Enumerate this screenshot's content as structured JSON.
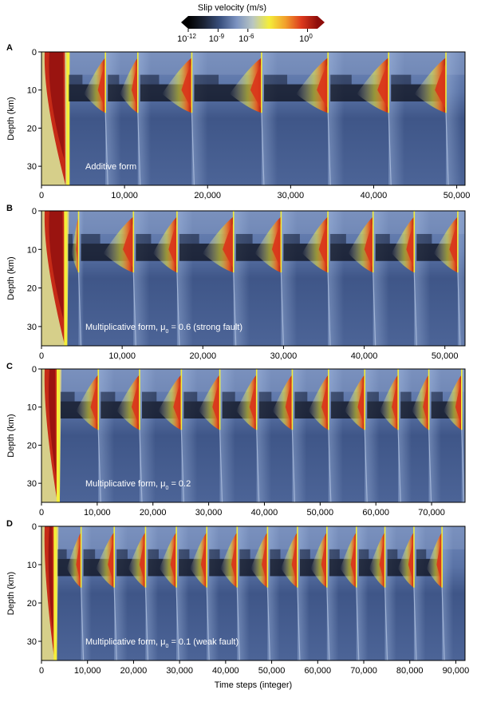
{
  "colorbar": {
    "title": "Slip velocity (m/s)",
    "scale": "log",
    "ticks": [
      {
        "base": "10",
        "exp": "-12"
      },
      {
        "base": "10",
        "exp": "-9"
      },
      {
        "base": "10",
        "exp": "-6"
      },
      {
        "base": "10",
        "exp": "0"
      }
    ],
    "colors": [
      "#000000",
      "#1c2436",
      "#3b5280",
      "#7c93c1",
      "#b9c6c2",
      "#f4ee3a",
      "#f2a12c",
      "#dd3a1d",
      "#8e0d0a"
    ]
  },
  "chart_data": [
    {
      "type": "heatmap",
      "panel": "A",
      "title": "",
      "annotation": {
        "text": "Additive form",
        "sub": "",
        "tail": ""
      },
      "xlabel": "",
      "ylabel": "Depth (km)",
      "xlim": [
        0,
        51000
      ],
      "ylim": [
        35,
        0
      ],
      "xticks": [
        0,
        10000,
        20000,
        30000,
        40000,
        50000
      ],
      "xtick_labels": [
        "0",
        "10,000",
        "20,000",
        "30,000",
        "40,000",
        "50,000"
      ],
      "yticks": [
        0,
        10,
        20,
        30
      ],
      "ytick_labels": [
        "0",
        "10",
        "20",
        "30"
      ],
      "events": [
        3000,
        7700,
        11600,
        18100,
        26500,
        34500,
        41800,
        48700
      ],
      "bright_column": 3200
    },
    {
      "type": "heatmap",
      "panel": "B",
      "title": "",
      "annotation": {
        "text": "Multiplicative form, μ",
        "sub": "0",
        "tail": " = 0.6 (strong fault)"
      },
      "xlabel": "",
      "ylabel": "Depth (km)",
      "xlim": [
        0,
        52500
      ],
      "ylim": [
        35,
        0
      ],
      "xticks": [
        0,
        10000,
        20000,
        30000,
        40000,
        50000
      ],
      "xtick_labels": [
        "0",
        "10,000",
        "20,000",
        "30,000",
        "40,000",
        "50,000"
      ],
      "yticks": [
        0,
        10,
        20,
        30
      ],
      "ytick_labels": [
        "0",
        "10",
        "20",
        "30"
      ],
      "events": [
        3000,
        4600,
        11400,
        16800,
        23800,
        29700,
        35500,
        41100,
        46200,
        51600
      ],
      "bright_column": 3000
    },
    {
      "type": "heatmap",
      "panel": "C",
      "title": "",
      "annotation": {
        "text": "Multiplicative form, μ",
        "sub": "0",
        "tail": " = 0.2"
      },
      "xlabel": "",
      "ylabel": "Depth (km)",
      "xlim": [
        0,
        76000
      ],
      "ylim": [
        35,
        0
      ],
      "xticks": [
        0,
        10000,
        20000,
        30000,
        40000,
        50000,
        60000,
        70000
      ],
      "xtick_labels": [
        "0",
        "10,000",
        "20,000",
        "30,000",
        "40,000",
        "50,000",
        "60,000",
        "70,000"
      ],
      "yticks": [
        0,
        10,
        20,
        30
      ],
      "ytick_labels": [
        "0",
        "10",
        "20",
        "30"
      ],
      "events": [
        3000,
        10200,
        17600,
        25100,
        32000,
        38600,
        45000,
        51500,
        58000,
        64000,
        69500,
        75400
      ],
      "bright_column": 3000
    },
    {
      "type": "heatmap",
      "panel": "D",
      "title": "",
      "annotation": {
        "text": "Multiplicative form, μ",
        "sub": "0",
        "tail": " = 0.1 (weak fault)"
      },
      "xlabel": "Time steps (integer)",
      "ylabel": "Depth (km)",
      "xlim": [
        0,
        92000
      ],
      "ylim": [
        35,
        0
      ],
      "xticks": [
        0,
        10000,
        20000,
        30000,
        40000,
        50000,
        60000,
        70000,
        80000,
        90000
      ],
      "xtick_labels": [
        "0",
        "10,000",
        "20,000",
        "30,000",
        "40,000",
        "50,000",
        "60,000",
        "70,000",
        "80,000",
        "90,000"
      ],
      "yticks": [
        0,
        10,
        20,
        30
      ],
      "ytick_labels": [
        "0",
        "10",
        "20",
        "30"
      ],
      "events": [
        3000,
        8600,
        15800,
        22600,
        29300,
        35900,
        42500,
        49100,
        55600,
        62000,
        68400,
        74600,
        80900,
        87000
      ],
      "bright_column": 3000
    }
  ]
}
